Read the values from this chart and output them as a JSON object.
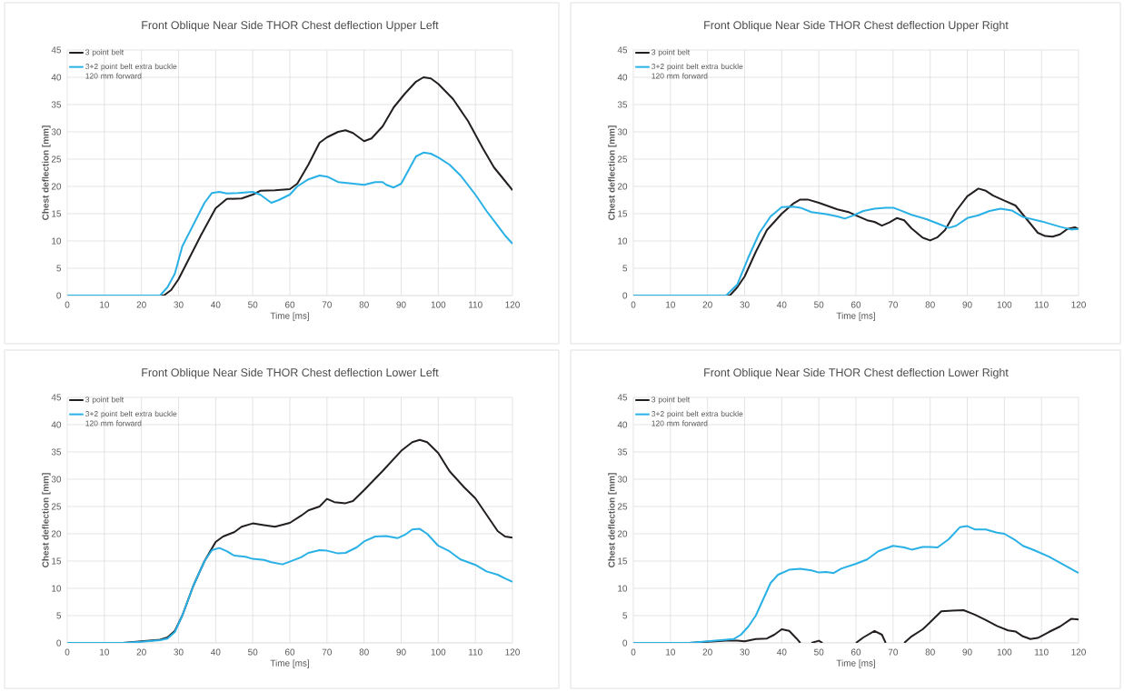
{
  "chart_data": [
    {
      "type": "line",
      "title": "Front Oblique Near Side THOR Chest deflection Upper Left",
      "xlabel": "Time [ms]",
      "ylabel": "Chest deflection [mm]",
      "xlim": [
        0,
        120
      ],
      "ylim": [
        0,
        45
      ],
      "xticks": [
        0,
        10,
        20,
        30,
        40,
        50,
        60,
        70,
        80,
        90,
        100,
        110,
        120
      ],
      "yticks": [
        0,
        5,
        10,
        15,
        20,
        25,
        30,
        35,
        40,
        45
      ],
      "grid": true,
      "legend": "top left",
      "series": [
        {
          "name": "3 point belt",
          "color": "#231f20",
          "x": [
            20,
            25,
            26,
            28,
            30,
            33,
            36,
            40,
            43,
            47,
            50,
            52,
            56,
            60,
            62,
            65,
            68,
            70,
            73,
            75,
            77,
            80,
            82,
            85,
            88,
            91,
            94,
            96,
            98,
            100,
            104,
            108,
            112,
            115,
            118,
            120
          ],
          "values": [
            0,
            0,
            0,
            1,
            3,
            7,
            11,
            16,
            17.7,
            17.8,
            18.5,
            19.2,
            19.3,
            19.5,
            20.5,
            24,
            28,
            29,
            30,
            30.3,
            29.8,
            28.3,
            28.8,
            31,
            34.5,
            37,
            39.2,
            40,
            39.8,
            38.8,
            36,
            32,
            27,
            23.5,
            21,
            19.3
          ]
        },
        {
          "name": "3+2 point belt extra buckle 120 mm forward",
          "color": "#29b1e6",
          "x": [
            0,
            10,
            20,
            25,
            27,
            29,
            31,
            34,
            37,
            39,
            41,
            43,
            46,
            50,
            52,
            55,
            57,
            60,
            62,
            65,
            68,
            70,
            73,
            76,
            80,
            83,
            85,
            86,
            88,
            90,
            92,
            94,
            96,
            98,
            100,
            103,
            106,
            110,
            113,
            116,
            118,
            120
          ],
          "values": [
            0,
            0,
            0,
            0,
            1.5,
            4,
            9,
            13,
            17,
            18.8,
            19,
            18.7,
            18.8,
            19,
            18.5,
            17,
            17.5,
            18.5,
            20,
            21.3,
            22,
            21.8,
            20.8,
            20.6,
            20.3,
            20.8,
            20.8,
            20.3,
            19.8,
            20.5,
            23,
            25.5,
            26.2,
            26,
            25.3,
            24,
            22,
            18.5,
            15.5,
            12.8,
            11,
            9.5
          ]
        }
      ]
    },
    {
      "type": "line",
      "title": "Front Oblique Near Side THOR Chest deflection Upper Right",
      "xlabel": "Time [ms]",
      "ylabel": "Chest deflection [mm]",
      "xlim": [
        0,
        120
      ],
      "ylim": [
        0,
        45
      ],
      "xticks": [
        0,
        10,
        20,
        30,
        40,
        50,
        60,
        70,
        80,
        90,
        100,
        110,
        120
      ],
      "yticks": [
        0,
        5,
        10,
        15,
        20,
        25,
        30,
        35,
        40,
        45
      ],
      "grid": true,
      "legend": "top left",
      "series": [
        {
          "name": "3 point belt",
          "color": "#231f20",
          "x": [
            20,
            25,
            26,
            28,
            30,
            33,
            36,
            40,
            43,
            45,
            47,
            50,
            55,
            58,
            60,
            63,
            65,
            67,
            69,
            71,
            73,
            75,
            78,
            80,
            82,
            84,
            87,
            90,
            93,
            95,
            97,
            100,
            103,
            106,
            109,
            111,
            113,
            115,
            117,
            119,
            120
          ],
          "values": [
            0,
            0,
            0,
            1.5,
            3.5,
            8,
            12,
            15,
            16.8,
            17.6,
            17.6,
            17,
            15.8,
            15.3,
            14.7,
            13.8,
            13.5,
            12.8,
            13.4,
            14.2,
            13.8,
            12.3,
            10.6,
            10.1,
            10.7,
            12,
            15.5,
            18.2,
            19.6,
            19.2,
            18.3,
            17.4,
            16.5,
            14,
            11.5,
            10.9,
            10.8,
            11.2,
            12.2,
            12.5,
            12.2
          ]
        },
        {
          "name": "3+2 point belt extra buckle 120 mm forward",
          "color": "#29b1e6",
          "x": [
            0,
            10,
            20,
            25,
            28,
            31,
            34,
            37,
            40,
            43,
            45,
            48,
            52,
            55,
            57,
            59,
            62,
            65,
            68,
            70,
            72,
            75,
            79,
            82,
            85,
            87,
            90,
            93,
            96,
            99,
            102,
            105,
            110,
            115,
            118,
            120
          ],
          "values": [
            0,
            0,
            0,
            0,
            2,
            7,
            11.5,
            14.5,
            16.2,
            16.3,
            16.1,
            15.3,
            14.9,
            14.5,
            14.1,
            14.6,
            15.5,
            15.9,
            16.1,
            16.1,
            15.6,
            14.8,
            14,
            13.2,
            12.4,
            12.8,
            14.2,
            14.7,
            15.5,
            15.9,
            15.6,
            14.4,
            13.6,
            12.6,
            12.1,
            12.2
          ]
        }
      ]
    },
    {
      "type": "line",
      "title": "Front Oblique Near Side THOR Chest deflection Lower Left",
      "xlabel": "Time [ms]",
      "ylabel": "Chest deflection [mm]",
      "xlim": [
        0,
        120
      ],
      "ylim": [
        0,
        45
      ],
      "xticks": [
        0,
        10,
        20,
        30,
        40,
        50,
        60,
        70,
        80,
        90,
        100,
        110,
        120
      ],
      "yticks": [
        0,
        5,
        10,
        15,
        20,
        25,
        30,
        35,
        40,
        45
      ],
      "grid": true,
      "legend": "top left",
      "series": [
        {
          "name": "3 point belt",
          "color": "#231f20",
          "x": [
            15,
            20,
            25,
            27,
            29,
            31,
            34,
            37,
            40,
            42,
            45,
            47,
            50,
            53,
            56,
            60,
            63,
            65,
            68,
            70,
            72,
            75,
            77,
            80,
            85,
            90,
            93,
            95,
            97,
            100,
            103,
            107,
            110,
            113,
            116,
            118,
            120
          ],
          "values": [
            0,
            0.3,
            0.6,
            1,
            2.2,
            5,
            10.5,
            15,
            18.5,
            19.5,
            20.3,
            21.3,
            21.9,
            21.6,
            21.3,
            22,
            23.3,
            24.3,
            25,
            26.4,
            25.8,
            25.6,
            26,
            28,
            31.5,
            35.2,
            36.8,
            37.2,
            36.8,
            34.8,
            31.5,
            28.5,
            26.5,
            23.5,
            20.5,
            19.5,
            19.3
          ]
        },
        {
          "name": "3+2 point belt extra buckle 120 mm forward",
          "color": "#29b1e6",
          "x": [
            0,
            10,
            15,
            20,
            25,
            27,
            29,
            31,
            34,
            37,
            39,
            41,
            43,
            45,
            48,
            50,
            53,
            55,
            58,
            60,
            63,
            65,
            68,
            70,
            73,
            75,
            78,
            80,
            83,
            86,
            89,
            91,
            93,
            95,
            97,
            100,
            103,
            106,
            110,
            113,
            116,
            118,
            120
          ],
          "values": [
            0,
            0,
            0,
            0.2,
            0.5,
            0.8,
            2,
            5,
            10.5,
            15,
            17,
            17.4,
            16.8,
            16,
            15.8,
            15.4,
            15.2,
            14.8,
            14.4,
            14.9,
            15.7,
            16.5,
            17,
            16.9,
            16.4,
            16.5,
            17.5,
            18.6,
            19.5,
            19.6,
            19.2,
            19.8,
            20.8,
            20.9,
            20,
            17.8,
            16.8,
            15.3,
            14.3,
            13.1,
            12.5,
            11.8,
            11.2
          ]
        }
      ]
    },
    {
      "type": "line",
      "title": "Front Oblique Near Side THOR Chest deflection Lower Right",
      "xlabel": "Time [ms]",
      "ylabel": "Chest deflection [mm]",
      "xlim": [
        0,
        120
      ],
      "ylim": [
        0,
        45
      ],
      "xticks": [
        0,
        10,
        20,
        30,
        40,
        50,
        60,
        70,
        80,
        90,
        100,
        110,
        120
      ],
      "yticks": [
        0,
        5,
        10,
        15,
        20,
        25,
        30,
        35,
        40,
        45
      ],
      "grid": true,
      "legend": "top left",
      "series": [
        {
          "name": "3 point belt",
          "color": "#231f20",
          "x": [
            15,
            20,
            25,
            28,
            30,
            33,
            36,
            38,
            40,
            42,
            44,
            45,
            46,
            48,
            50,
            51,
            52,
            59,
            60,
            62,
            65,
            67,
            68,
            69,
            72,
            73,
            75,
            78,
            80,
            83,
            86,
            89,
            92,
            95,
            98,
            101,
            103,
            105,
            107,
            109,
            112,
            115,
            118,
            120
          ],
          "values": [
            0,
            0.2,
            0.4,
            0.4,
            0.3,
            0.7,
            0.8,
            1.5,
            2.5,
            2.2,
            0.8,
            0,
            null,
            0,
            0.4,
            0,
            null,
            null,
            0,
            1,
            2.2,
            1.5,
            0,
            null,
            null,
            0,
            1.2,
            2.5,
            3.8,
            5.8,
            5.9,
            6,
            5.2,
            4.2,
            3.1,
            2.3,
            2.1,
            1.2,
            0.7,
            0.9,
            2,
            3,
            4.4,
            4.3
          ]
        },
        {
          "name": "3+2 point belt extra buckle 120 mm forward",
          "color": "#29b1e6",
          "x": [
            0,
            10,
            15,
            20,
            25,
            27,
            29,
            31,
            33,
            35,
            37,
            39,
            42,
            45,
            48,
            50,
            52,
            54,
            56,
            60,
            63,
            66,
            70,
            73,
            75,
            78,
            80,
            82,
            85,
            88,
            90,
            92,
            95,
            98,
            100,
            103,
            105,
            108,
            112,
            116,
            120
          ],
          "values": [
            0,
            0,
            0,
            0.3,
            0.6,
            0.7,
            1.5,
            3,
            5,
            8,
            11,
            12.5,
            13.4,
            13.6,
            13.3,
            12.9,
            13,
            12.8,
            13.6,
            14.5,
            15.3,
            16.8,
            17.8,
            17.5,
            17.1,
            17.6,
            17.6,
            17.5,
            19,
            21.2,
            21.4,
            20.8,
            20.8,
            20.2,
            20,
            18.8,
            17.8,
            17,
            15.8,
            14.3,
            12.8
          ]
        }
      ]
    }
  ]
}
